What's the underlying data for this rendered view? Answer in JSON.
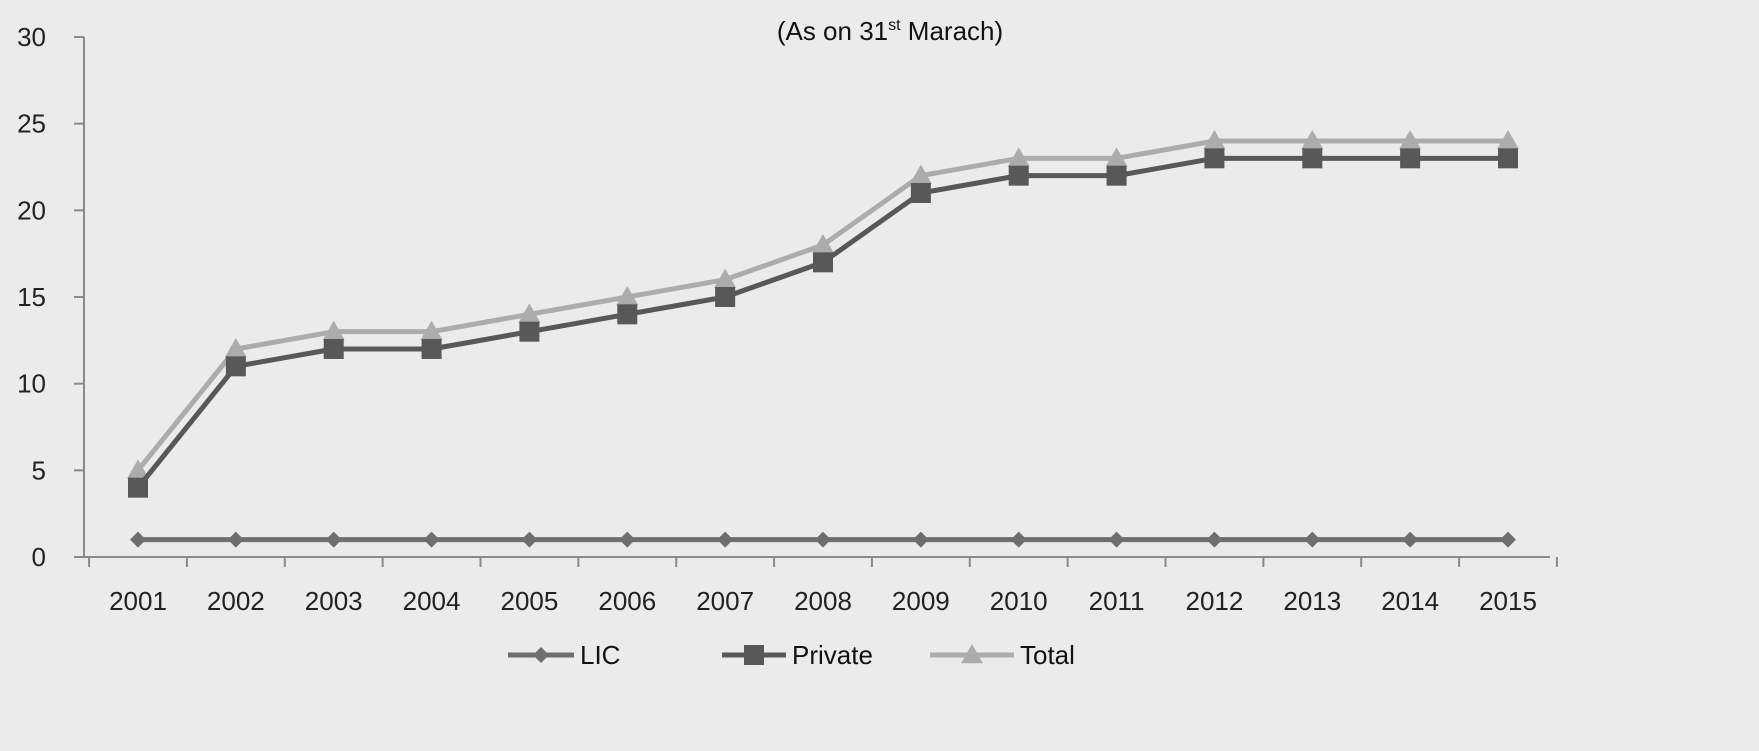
{
  "chart_data": {
    "type": "line",
    "title_main": "(As on 31",
    "title_sup": "st",
    "title_end": " Marach)",
    "xlabel": "",
    "ylabel": "",
    "x": [
      "2001",
      "2002",
      "2003",
      "2004",
      "2005",
      "2006",
      "2007",
      "2008",
      "2009",
      "2010",
      "2011",
      "2012",
      "2013",
      "2014",
      "2015"
    ],
    "ylim": [
      0,
      30
    ],
    "yticks": [
      0,
      5,
      10,
      15,
      20,
      25,
      30
    ],
    "grid": false,
    "legend_position": "bottom",
    "series": [
      {
        "name": "LIC",
        "marker": "diamond",
        "color": "#6e6e6e",
        "values": [
          1,
          1,
          1,
          1,
          1,
          1,
          1,
          1,
          1,
          1,
          1,
          1,
          1,
          1,
          1
        ]
      },
      {
        "name": "Private",
        "marker": "square",
        "color": "#585858",
        "values": [
          4,
          11,
          12,
          12,
          13,
          14,
          15,
          17,
          21,
          22,
          22,
          23,
          23,
          23,
          23
        ]
      },
      {
        "name": "Total",
        "marker": "triangle",
        "color": "#acacac",
        "values": [
          5,
          12,
          13,
          13,
          14,
          15,
          16,
          18,
          22,
          23,
          23,
          24,
          24,
          24,
          24
        ]
      }
    ]
  }
}
